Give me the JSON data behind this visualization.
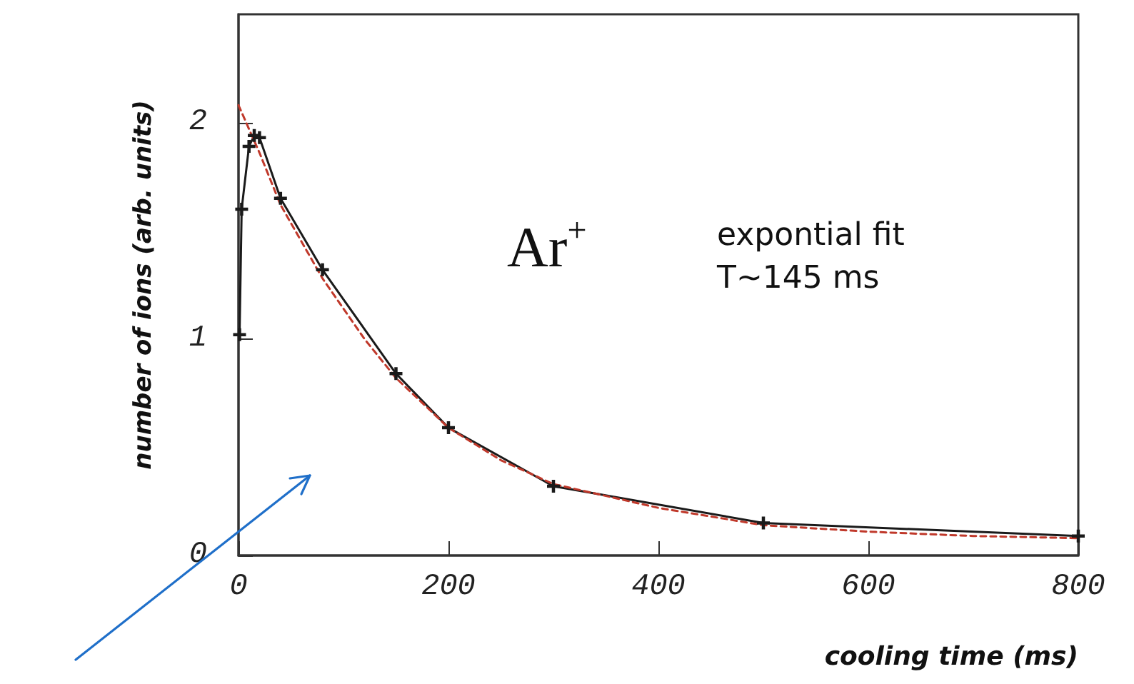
{
  "chart_data": {
    "type": "line",
    "xlabel": "cooling time (ms)",
    "ylabel": "number of ions (arb. units)",
    "annotations": [
      "Ar$^{+}$",
      "expontial fit",
      "T~145 ms"
    ],
    "xlim": [
      0,
      800
    ],
    "xticks": [
      0,
      200,
      400,
      600,
      800
    ],
    "ylim": [
      0,
      2.5
    ],
    "yticks": [
      0,
      1,
      2
    ],
    "grid": false,
    "series": [
      {
        "color": "#1a1a1a",
        "marker": "cross",
        "line_style": "solid",
        "x": [
          1,
          3,
          10,
          15,
          20,
          40,
          80,
          150,
          200,
          300,
          500,
          800
        ],
        "values": [
          1.02,
          1.6,
          1.89,
          1.94,
          1.93,
          1.65,
          1.32,
          0.84,
          0.59,
          0.32,
          0.15,
          0.09
        ]
      },
      {
        "color": "#c0392b",
        "marker": "none",
        "line_style": "dashed",
        "x": [
          0,
          20,
          40,
          80,
          120,
          150,
          200,
          250,
          300,
          400,
          500,
          600,
          700,
          800
        ],
        "values": [
          2.08,
          1.86,
          1.62,
          1.28,
          1.0,
          0.82,
          0.59,
          0.44,
          0.33,
          0.22,
          0.14,
          0.11,
          0.09,
          0.08
        ]
      }
    ]
  }
}
